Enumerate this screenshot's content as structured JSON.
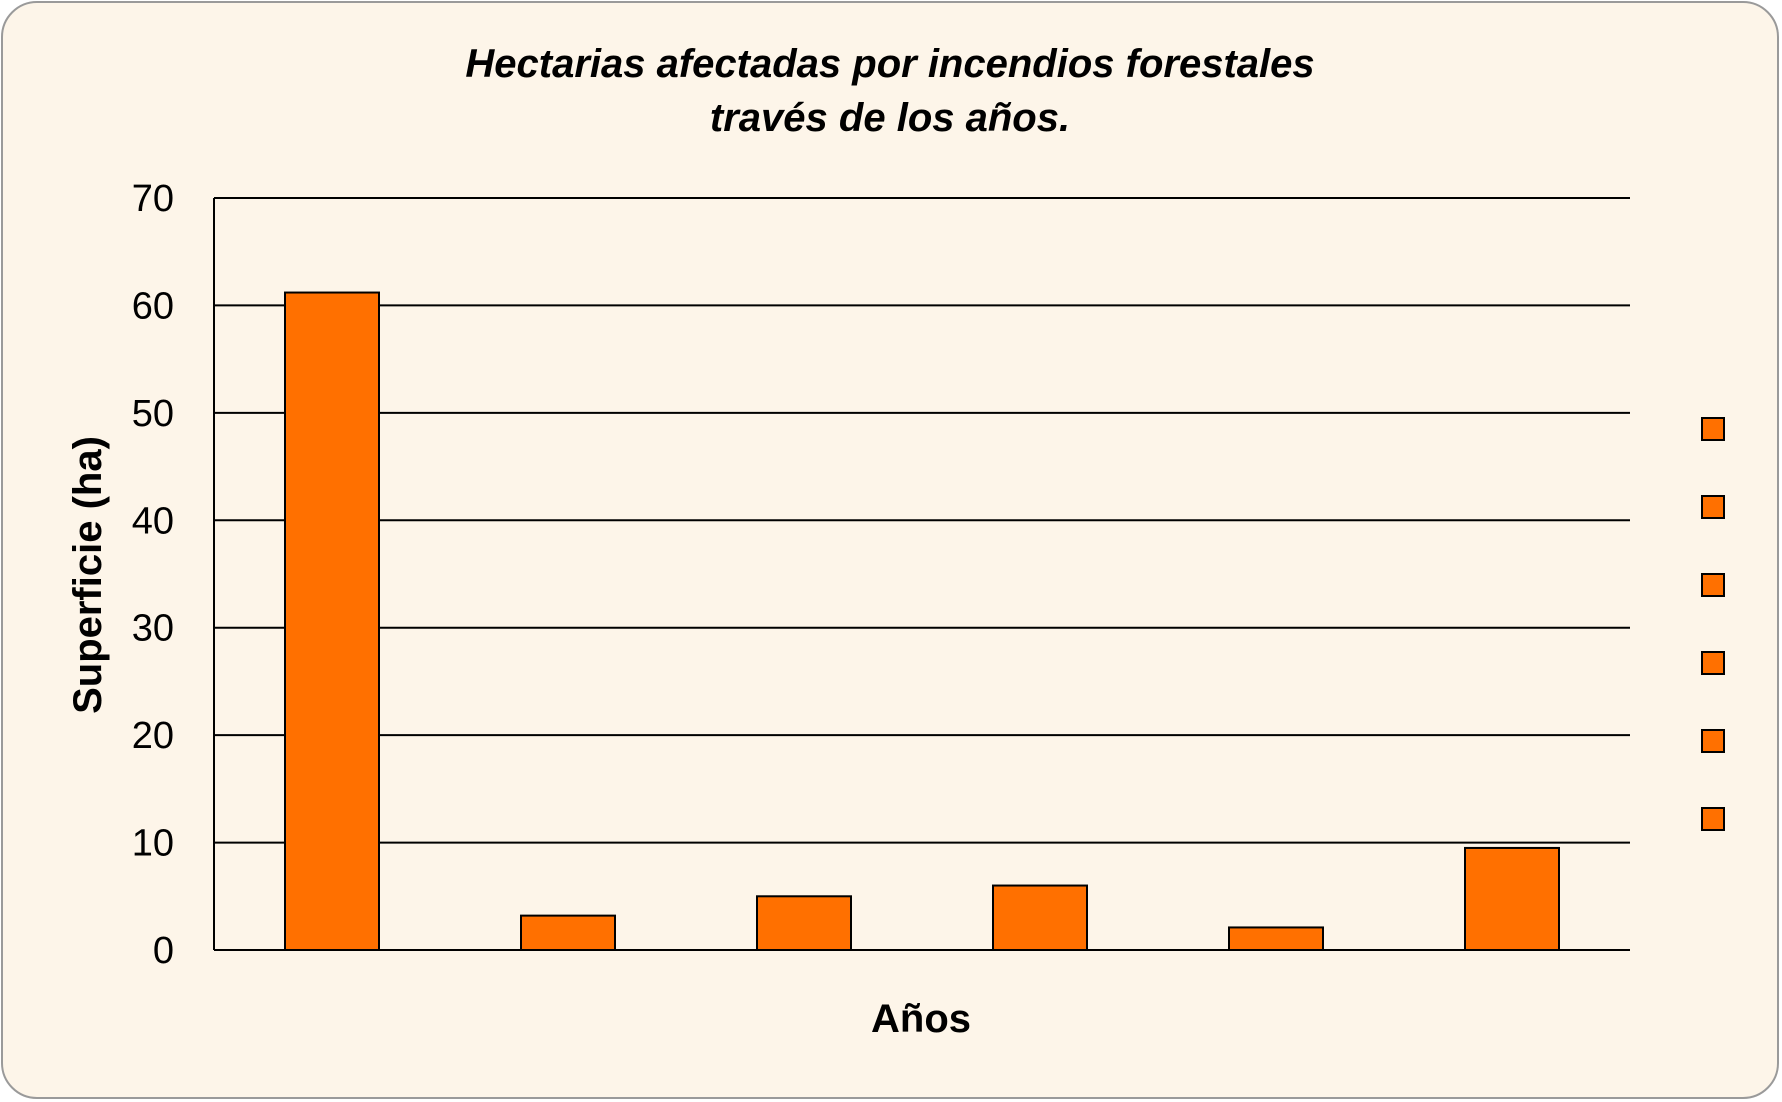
{
  "chart_data": {
    "type": "bar",
    "title": [
      "Hectarias afectadas  por incendios forestales",
      "través de los años."
    ],
    "xlabel": "Años",
    "ylabel": "Superficie (ha)",
    "ylim": [
      0,
      70
    ],
    "yticks": [
      0,
      10,
      20,
      30,
      40,
      50,
      60,
      70
    ],
    "grid": true,
    "legend": "right",
    "legend_entries": [
      "",
      "",
      "",
      "",
      "",
      ""
    ],
    "categories": [
      "",
      "",
      "",
      "",
      "",
      ""
    ],
    "series": [
      {
        "values": [
          61.2,
          3.2,
          5.0,
          6.0,
          2.1,
          9.5
        ]
      }
    ],
    "colors": {
      "bar": "#ff7000",
      "edge": "#000000",
      "grid": "#000000"
    }
  }
}
